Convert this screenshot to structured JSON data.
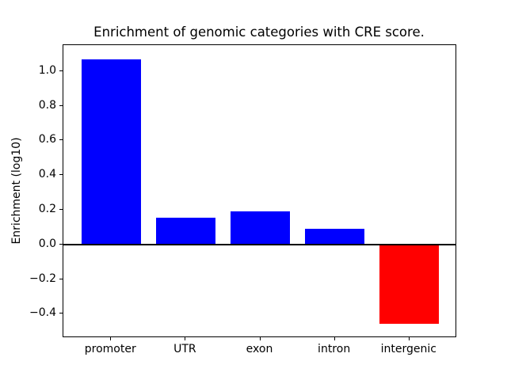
{
  "chart_data": {
    "type": "bar",
    "title": "Enrichment of genomic categories with CRE score.",
    "xlabel": "",
    "ylabel": "Enrichment (log10)",
    "categories": [
      "promoter",
      "UTR",
      "exon",
      "intron",
      "intergenic"
    ],
    "values": [
      1.07,
      0.155,
      0.19,
      0.09,
      -0.46
    ],
    "bar_colors": [
      "#0000ff",
      "#0000ff",
      "#0000ff",
      "#0000ff",
      "#ff0000"
    ],
    "positive_color": "#0000ff",
    "negative_color": "#ff0000",
    "baseline": 0,
    "baseline_color": "#000000",
    "bar_width": 0.8,
    "ylim": [
      -0.54,
      1.15
    ],
    "xlim": [
      -0.64,
      4.64
    ],
    "yticks": [
      1.0,
      0.8,
      0.6,
      0.4,
      0.2,
      0.0,
      -0.2,
      -0.4
    ],
    "ytick_labels": [
      "1.0",
      "0.8",
      "0.6",
      "0.4",
      "0.2",
      "0.0",
      "−0.2",
      "−0.4"
    ],
    "grid": false,
    "legend": "none",
    "plot_background": "#ffffff",
    "spine_color": "#000000"
  }
}
